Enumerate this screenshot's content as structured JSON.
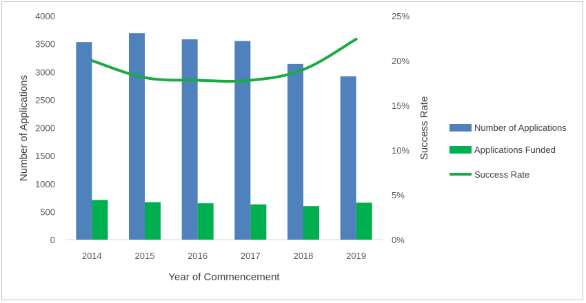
{
  "chart_data": {
    "type": "bar",
    "categories": [
      "2014",
      "2015",
      "2016",
      "2017",
      "2018",
      "2019"
    ],
    "series": [
      {
        "name": "Number of Applications",
        "kind": "bar",
        "axis": "left",
        "color": "#4f81bd",
        "values": [
          3530,
          3690,
          3580,
          3550,
          3140,
          2920
        ]
      },
      {
        "name": "Applications Funded",
        "kind": "bar",
        "axis": "left",
        "color": "#00b050",
        "values": [
          710,
          670,
          650,
          630,
          600,
          660
        ]
      },
      {
        "name": "Success Rate",
        "kind": "line",
        "axis": "right",
        "color": "#1aab40",
        "values": [
          0.2,
          0.181,
          0.178,
          0.178,
          0.19,
          0.224
        ]
      }
    ],
    "xlabel": "Year of Commencement",
    "ylabel": "Number of Applications",
    "y2label": "Success Rate",
    "ylim": [
      0,
      4000
    ],
    "yticks": [
      "0",
      "500",
      "1000",
      "1500",
      "2000",
      "2500",
      "3000",
      "3500",
      "4000"
    ],
    "y2lim": [
      0,
      0.25
    ],
    "y2ticks": [
      "0%",
      "5%",
      "10%",
      "15%",
      "20%",
      "25%"
    ],
    "grid": false,
    "legend_position": "right"
  }
}
